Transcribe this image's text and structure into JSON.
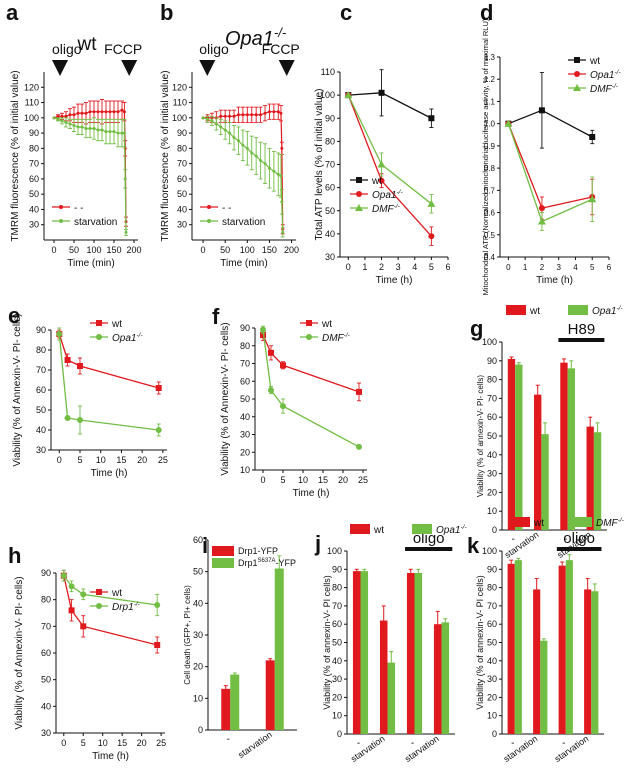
{
  "colors": {
    "red": "#e0191e",
    "green": "#72bd44",
    "black": "#111111"
  },
  "chart_data": [
    {
      "id": "a",
      "type": "line",
      "letter": "a",
      "title": "wt",
      "ylabel": "TMRM fluorescence (% of initial value)",
      "xlabel": "Time (min)",
      "xlim": [
        -25,
        210
      ],
      "ylim": [
        20,
        130
      ],
      "xticks": [
        0,
        50,
        100,
        150,
        200
      ],
      "yticks": [
        30,
        40,
        50,
        60,
        70,
        80,
        90,
        100,
        110,
        120
      ],
      "annotations": [
        {
          "text": "oligo",
          "x": 10
        },
        {
          "text": "FCCP",
          "x": 178
        }
      ],
      "legend": [
        "- -",
        "starvation"
      ],
      "series": [
        {
          "name": "- -",
          "color": "red",
          "x": [
            0,
            10,
            20,
            30,
            40,
            50,
            60,
            70,
            80,
            90,
            100,
            110,
            120,
            130,
            140,
            150,
            160,
            170,
            176,
            178,
            180
          ],
          "y": [
            100,
            101,
            101,
            101,
            102,
            102,
            103,
            103,
            103,
            104,
            104,
            104,
            104,
            104,
            104,
            104,
            104,
            105,
            104,
            80,
            32
          ],
          "err": [
            0,
            1,
            2,
            3,
            4,
            5,
            6,
            6,
            7,
            7,
            7,
            7,
            8,
            7,
            7,
            7,
            7,
            6,
            6,
            5,
            3
          ]
        },
        {
          "name": "starvation",
          "color": "green",
          "x": [
            0,
            10,
            20,
            30,
            40,
            50,
            60,
            70,
            80,
            90,
            100,
            110,
            120,
            130,
            140,
            150,
            160,
            170,
            176,
            178,
            180
          ],
          "y": [
            100,
            99,
            98,
            97,
            96,
            95,
            94,
            94,
            93,
            93,
            93,
            92,
            92,
            91,
            91,
            91,
            90,
            90,
            90,
            60,
            25
          ],
          "err": [
            0,
            1,
            2,
            3,
            3,
            4,
            5,
            5,
            6,
            6,
            7,
            7,
            7,
            8,
            8,
            8,
            9,
            9,
            9,
            6,
            2
          ]
        }
      ]
    },
    {
      "id": "b",
      "type": "line",
      "letter": "b",
      "title": "Opa1",
      "title_sup": "-/-",
      "ylabel": "TMRM fluorescence (% of initial value)",
      "xlabel": "Time (min)",
      "xlim": [
        -25,
        210
      ],
      "ylim": [
        20,
        130
      ],
      "xticks": [
        0,
        50,
        100,
        150,
        200
      ],
      "yticks": [
        30,
        40,
        50,
        60,
        70,
        80,
        90,
        100,
        110,
        120
      ],
      "annotations": [
        {
          "text": "oligo",
          "x": 5
        },
        {
          "text": "FCCP",
          "x": 180
        }
      ],
      "legend": [
        "- -",
        "starvation"
      ],
      "series": [
        {
          "name": "- -",
          "color": "red",
          "x": [
            0,
            10,
            20,
            30,
            40,
            50,
            60,
            70,
            80,
            90,
            100,
            110,
            120,
            130,
            140,
            150,
            160,
            170,
            176,
            178,
            180
          ],
          "y": [
            100,
            100,
            100,
            100,
            101,
            101,
            101,
            101,
            102,
            102,
            102,
            102,
            102,
            102,
            103,
            104,
            104,
            104,
            103,
            80,
            27
          ],
          "err": [
            0,
            2,
            3,
            4,
            4,
            4,
            4,
            4,
            5,
            5,
            5,
            5,
            5,
            5,
            5,
            5,
            5,
            5,
            5,
            4,
            3
          ]
        },
        {
          "name": "starvation",
          "color": "green",
          "x": [
            0,
            10,
            20,
            30,
            40,
            50,
            60,
            70,
            80,
            90,
            100,
            110,
            120,
            130,
            140,
            150,
            160,
            170,
            176,
            178,
            180
          ],
          "y": [
            100,
            99,
            98,
            96,
            94,
            92,
            90,
            87,
            85,
            82,
            80,
            77,
            75,
            72,
            70,
            67,
            65,
            63,
            62,
            45,
            25
          ],
          "err": [
            0,
            2,
            3,
            4,
            5,
            6,
            7,
            8,
            9,
            10,
            11,
            11,
            12,
            12,
            13,
            13,
            13,
            14,
            14,
            8,
            3
          ]
        }
      ]
    },
    {
      "id": "c",
      "type": "line",
      "letter": "c",
      "ylabel": "Total ATP levels (% of initial value)",
      "xlabel": "Time (h)",
      "xlim": [
        -0.5,
        6
      ],
      "ylim": [
        30,
        110
      ],
      "xticks": [
        0,
        1,
        2,
        3,
        4,
        5,
        6
      ],
      "yticks": [
        30,
        40,
        50,
        60,
        70,
        80,
        90,
        100,
        110
      ],
      "legend": [
        "wt",
        "Opa1",
        "DMF"
      ],
      "series": [
        {
          "name": "wt",
          "color": "black",
          "marker": "square",
          "x": [
            0,
            2,
            5
          ],
          "y": [
            100,
            101,
            90
          ],
          "err": [
            0,
            10,
            4
          ]
        },
        {
          "name": "Opa1",
          "sup": "-/-",
          "color": "red",
          "marker": "circle",
          "x": [
            0,
            2,
            5
          ],
          "y": [
            100,
            63,
            39
          ],
          "err": [
            0,
            3,
            4
          ]
        },
        {
          "name": "DMF",
          "sup": "-/-",
          "color": "green",
          "marker": "triangle",
          "x": [
            0,
            2,
            5
          ],
          "y": [
            100,
            70,
            53
          ],
          "err": [
            0,
            5,
            4
          ]
        }
      ]
    },
    {
      "id": "d",
      "type": "line",
      "letter": "d",
      "ylabel": "Mitochondrial ATP (Normalized mitochondrial luciferase activity, % of maximal RLU)",
      "xlabel": "Time (h)",
      "xlim": [
        -0.5,
        6
      ],
      "ylim": [
        0.4,
        1.3
      ],
      "xticks": [
        0,
        1,
        2,
        3,
        4,
        5,
        6
      ],
      "yticks": [
        0.4,
        0.5,
        0.6,
        0.7,
        0.8,
        0.9,
        1.0,
        1.1,
        1.2,
        1.3
      ],
      "legend": [
        "wt",
        "Opa1",
        "DMF"
      ],
      "series": [
        {
          "name": "wt",
          "color": "black",
          "marker": "square",
          "x": [
            0,
            2,
            5
          ],
          "y": [
            1.0,
            1.06,
            0.94
          ],
          "err": [
            0,
            0.17,
            0.03
          ]
        },
        {
          "name": "Opa1",
          "sup": "-/-",
          "color": "red",
          "marker": "circle",
          "x": [
            0,
            2,
            5
          ],
          "y": [
            1.0,
            0.62,
            0.67
          ],
          "err": [
            0,
            0.05,
            0.08
          ]
        },
        {
          "name": "DMF",
          "sup": "-/-",
          "color": "green",
          "marker": "triangle",
          "x": [
            0,
            2,
            5
          ],
          "y": [
            1.0,
            0.56,
            0.66
          ],
          "err": [
            0,
            0.04,
            0.1
          ]
        }
      ]
    },
    {
      "id": "e",
      "type": "line",
      "letter": "e",
      "ylabel": "Viability (% of Annexin-V- PI- cells)",
      "xlabel": "Time (h)",
      "xlim": [
        -2,
        26
      ],
      "ylim": [
        30,
        90
      ],
      "xticks": [
        0,
        5,
        10,
        15,
        20,
        25
      ],
      "yticks": [
        30,
        40,
        50,
        60,
        70,
        80,
        90
      ],
      "legend": [
        "wt",
        "Opa1"
      ],
      "series": [
        {
          "name": "wt",
          "color": "red",
          "marker": "square",
          "x": [
            0,
            2,
            5,
            24
          ],
          "y": [
            88,
            75,
            72,
            61
          ],
          "err": [
            2,
            3,
            4,
            3
          ]
        },
        {
          "name": "Opa1",
          "sup": "-/-",
          "color": "green",
          "marker": "circle",
          "x": [
            0,
            2,
            5,
            24
          ],
          "y": [
            88,
            46,
            45,
            40
          ],
          "err": [
            3,
            1,
            7,
            3
          ]
        }
      ]
    },
    {
      "id": "f",
      "type": "line",
      "letter": "f",
      "ylabel": "Viability (% of Annexin-V- PI- cells)",
      "xlabel": "Time (h)",
      "xlim": [
        -2,
        26
      ],
      "ylim": [
        10,
        90
      ],
      "xticks": [
        0,
        5,
        10,
        15,
        20,
        25
      ],
      "yticks": [
        10,
        20,
        30,
        40,
        50,
        60,
        70,
        80,
        90
      ],
      "legend": [
        "wt",
        "DMF"
      ],
      "series": [
        {
          "name": "wt",
          "color": "red",
          "marker": "square",
          "x": [
            0,
            2,
            5,
            24
          ],
          "y": [
            86,
            76,
            69,
            54
          ],
          "err": [
            3,
            4,
            2,
            5
          ]
        },
        {
          "name": "DMF",
          "sup": "-/-",
          "color": "green",
          "marker": "circle",
          "x": [
            0,
            2,
            5,
            24
          ],
          "y": [
            89,
            55,
            46,
            23
          ],
          "err": [
            2,
            2,
            4,
            1
          ]
        }
      ]
    },
    {
      "id": "g",
      "type": "bar",
      "letter": "g",
      "ylabel": "Viability (% of annexin-V- PI- cells)",
      "ylim": [
        0,
        100
      ],
      "yticks": [
        0,
        10,
        20,
        30,
        40,
        50,
        60,
        70,
        80,
        90,
        100
      ],
      "categories": [
        "-",
        "starvation",
        "-",
        "starvation"
      ],
      "bracket": "H89",
      "bracket_groups": [
        2,
        3
      ],
      "legend": [
        "wt",
        "Opa1"
      ],
      "series": [
        {
          "name": "wt",
          "color": "red",
          "values": [
            91,
            72,
            89,
            55
          ],
          "err": [
            1,
            5,
            2,
            5
          ]
        },
        {
          "name": "Opa1",
          "sup": "-/-",
          "color": "green",
          "values": [
            88,
            51,
            86,
            52
          ],
          "err": [
            1,
            6,
            4,
            5
          ]
        }
      ]
    },
    {
      "id": "h",
      "type": "line",
      "letter": "h",
      "ylabel": "Viability (% of Annexin-V- PI- cells)",
      "xlabel": "Time (h)",
      "xlim": [
        -2,
        26
      ],
      "ylim": [
        30,
        90
      ],
      "xticks": [
        0,
        5,
        10,
        15,
        20,
        25
      ],
      "yticks": [
        30,
        40,
        50,
        60,
        70,
        80,
        90
      ],
      "legend": [
        "wt",
        "Drp1"
      ],
      "series": [
        {
          "name": "wt",
          "color": "red",
          "marker": "square",
          "x": [
            0,
            2,
            5,
            24
          ],
          "y": [
            89,
            76,
            70,
            63
          ],
          "err": [
            2,
            4,
            4,
            3
          ]
        },
        {
          "name": "Drp1",
          "sup": "-/-",
          "color": "green",
          "marker": "circle",
          "x": [
            0,
            2,
            5,
            24
          ],
          "y": [
            89,
            85,
            82,
            78
          ],
          "err": [
            2,
            2,
            2,
            4
          ]
        }
      ]
    },
    {
      "id": "i",
      "type": "bar",
      "letter": "i",
      "ylabel": "Cell death (GFP+, PI+ cells)",
      "ylim": [
        0,
        60
      ],
      "yticks": [
        0,
        10,
        20,
        30,
        40,
        50,
        60
      ],
      "categories": [
        "-",
        "starvation"
      ],
      "legend": [
        "Drp1-YFP",
        "Drp1S637A-YFP"
      ],
      "series": [
        {
          "name": "Drp1-YFP",
          "color": "red",
          "values": [
            13,
            22
          ],
          "err": [
            1,
            0.5
          ]
        },
        {
          "name": "Drp1S637A-YFP",
          "color": "green",
          "values": [
            17.5,
            51
          ],
          "err": [
            0.5,
            4
          ]
        }
      ]
    },
    {
      "id": "j",
      "type": "bar",
      "letter": "j",
      "ylabel": "Viability (% of annexin-V- PI cells)",
      "ylim": [
        0,
        100
      ],
      "yticks": [
        0,
        10,
        20,
        30,
        40,
        50,
        60,
        70,
        80,
        90,
        100
      ],
      "categories": [
        "-",
        "starvation",
        "-",
        "starvation"
      ],
      "bracket": "oligo",
      "bracket_groups": [
        2,
        3
      ],
      "legend": [
        "wt",
        "Opa1"
      ],
      "series": [
        {
          "name": "wt",
          "color": "red",
          "values": [
            89,
            62,
            88,
            60
          ],
          "err": [
            1,
            8,
            2,
            7
          ]
        },
        {
          "name": "Opa1",
          "sup": "-/-",
          "color": "green",
          "values": [
            89,
            39,
            88,
            61
          ],
          "err": [
            1,
            6,
            2,
            2
          ]
        }
      ]
    },
    {
      "id": "k",
      "type": "bar",
      "letter": "k",
      "ylabel": "Viability (% of annexin-V- PI cells)",
      "ylim": [
        0,
        100
      ],
      "yticks": [
        0,
        10,
        20,
        30,
        40,
        50,
        60,
        70,
        80,
        90,
        100
      ],
      "categories": [
        "-",
        "starvation",
        "-",
        "starvation"
      ],
      "bracket": "oligo",
      "bracket_groups": [
        2,
        3
      ],
      "legend": [
        "wt",
        "DMF"
      ],
      "series": [
        {
          "name": "wt",
          "color": "red",
          "values": [
            93,
            79,
            92,
            79
          ],
          "err": [
            2,
            6,
            2,
            6
          ]
        },
        {
          "name": "DMF",
          "sup": "-/-",
          "color": "green",
          "values": [
            95,
            51,
            95,
            78
          ],
          "err": [
            1,
            1,
            3,
            4
          ]
        }
      ]
    }
  ]
}
